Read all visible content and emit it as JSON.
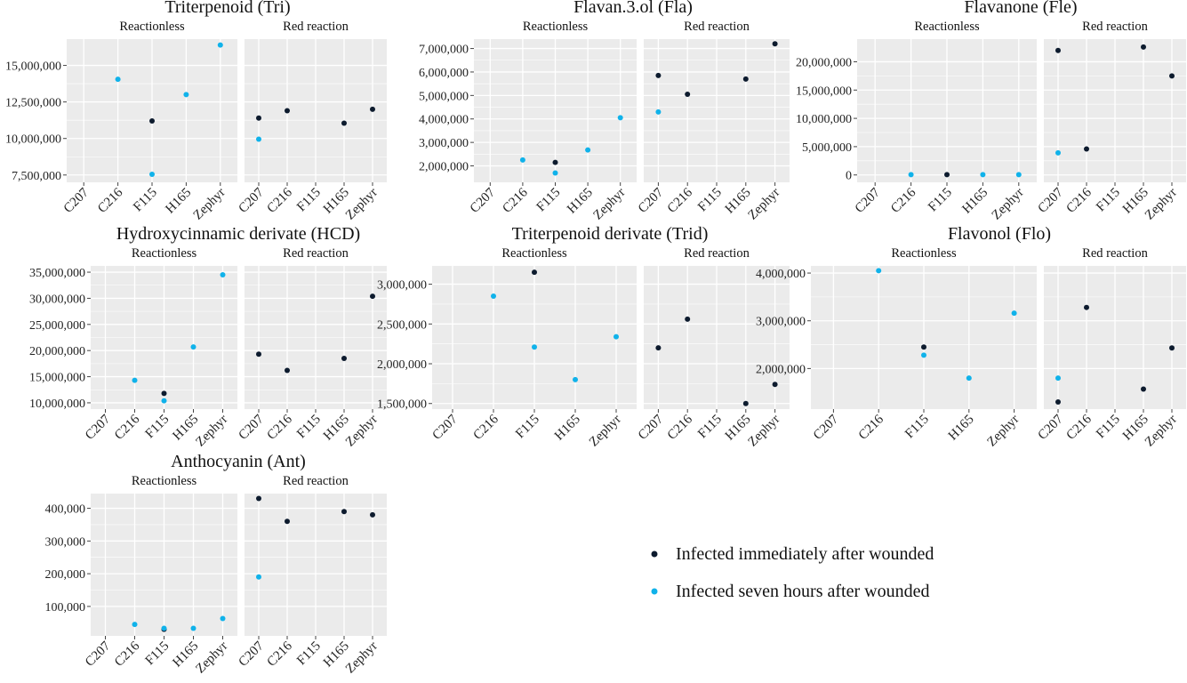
{
  "colors": {
    "immediate": "#0d1b2e",
    "seven_hours": "#10b2ea",
    "panel_bg": "#ebebeb",
    "grid": "#ffffff"
  },
  "legend": {
    "entries": [
      {
        "label": "Infected immediately after wounded",
        "color_key": "immediate"
      },
      {
        "label": "Infected seven hours after wounded",
        "color_key": "seven_hours"
      }
    ]
  },
  "chart_data": [
    {
      "type": "scatter",
      "title": "Triterpenoid (Tri)",
      "facets": [
        "Reactionless",
        "Red reaction"
      ],
      "categories": [
        "C207",
        "C216",
        "F115",
        "H165",
        "Zephyr"
      ],
      "ylim": [
        7000000,
        16800000
      ],
      "yticks": [
        7500000,
        10000000,
        12500000,
        15000000
      ],
      "ytick_labels": [
        "7,500,000",
        "10,000,000",
        "12,500,000",
        "15,000,000"
      ],
      "series": [
        {
          "color_key": "immediate",
          "facets": [
            [
              null,
              null,
              11200000,
              null,
              null
            ],
            [
              11400000,
              11900000,
              null,
              11050000,
              12000000
            ]
          ]
        },
        {
          "color_key": "seven_hours",
          "facets": [
            [
              null,
              14050000,
              7550000,
              13000000,
              16400000
            ],
            [
              null,
              null,
              null,
              null,
              null
            ]
          ]
        },
        {
          "color_key": "seven_hours",
          "facets": [
            [
              null,
              null,
              null,
              null,
              null
            ],
            [
              9950000,
              null,
              null,
              null,
              null
            ]
          ]
        }
      ]
    },
    {
      "type": "scatter",
      "title": "Flavan.3.ol (Fla)",
      "facets": [
        "Reactionless",
        "Red reaction"
      ],
      "categories": [
        "C207",
        "C216",
        "F115",
        "H165",
        "Zephyr"
      ],
      "ylim": [
        1300000,
        7400000
      ],
      "yticks": [
        2000000,
        3000000,
        4000000,
        5000000,
        6000000,
        7000000
      ],
      "ytick_labels": [
        "2,000,000",
        "3,000,000",
        "4,000,000",
        "5,000,000",
        "6,000,000",
        "7,000,000"
      ],
      "series": [
        {
          "color_key": "immediate",
          "facets": [
            [
              null,
              null,
              2150000,
              null,
              null
            ],
            [
              5850000,
              5050000,
              null,
              5700000,
              7200000
            ]
          ]
        },
        {
          "color_key": "seven_hours",
          "facets": [
            [
              null,
              2250000,
              1700000,
              2680000,
              4050000
            ],
            [
              4300000,
              null,
              null,
              null,
              null
            ]
          ]
        }
      ]
    },
    {
      "type": "scatter",
      "title": "Flavanone (Fle)",
      "facets": [
        "Reactionless",
        "Red reaction"
      ],
      "categories": [
        "C207",
        "C216",
        "F115",
        "H165",
        "Zephyr"
      ],
      "ylim": [
        -1300000,
        24000000
      ],
      "yticks": [
        0,
        5000000,
        10000000,
        15000000,
        20000000
      ],
      "ytick_labels": [
        "0",
        "5,000,000",
        "10,000,000",
        "15,000,000",
        "20,000,000"
      ],
      "series": [
        {
          "color_key": "immediate",
          "facets": [
            [
              null,
              null,
              50000,
              null,
              null
            ],
            [
              22000000,
              4600000,
              null,
              22600000,
              17500000
            ]
          ]
        },
        {
          "color_key": "seven_hours",
          "facets": [
            [
              null,
              50000,
              null,
              50000,
              50000
            ],
            [
              3900000,
              null,
              null,
              null,
              null
            ]
          ]
        }
      ]
    },
    {
      "type": "scatter",
      "title": "Hydroxycinnamic  derivate (HCD)",
      "facets": [
        "Reactionless",
        "Red reaction"
      ],
      "categories": [
        "C207",
        "C216",
        "F115",
        "H165",
        "Zephyr"
      ],
      "ylim": [
        8800000,
        36200000
      ],
      "yticks": [
        10000000,
        15000000,
        20000000,
        25000000,
        30000000,
        35000000
      ],
      "ytick_labels": [
        "10,000,000",
        "15,000,000",
        "20,000,000",
        "25,000,000",
        "30,000,000",
        "35,000,000"
      ],
      "series": [
        {
          "color_key": "immediate",
          "facets": [
            [
              null,
              null,
              11800000,
              null,
              null
            ],
            [
              19300000,
              16200000,
              null,
              18500000,
              30400000
            ]
          ]
        },
        {
          "color_key": "seven_hours",
          "facets": [
            [
              null,
              14300000,
              10400000,
              20700000,
              34500000
            ],
            [
              null,
              null,
              null,
              null,
              null
            ]
          ]
        }
      ]
    },
    {
      "type": "scatter",
      "title": "Triterpenoid  derivate (Trid)",
      "facets": [
        "Reactionless",
        "Red reaction"
      ],
      "categories": [
        "C207",
        "C216",
        "F115",
        "H165",
        "Zephyr"
      ],
      "ylim": [
        1430000,
        3230000
      ],
      "yticks": [
        1500000,
        2000000,
        2500000,
        3000000
      ],
      "ytick_labels": [
        "1,500,000",
        "2,000,000",
        "2,500,000",
        "3,000,000"
      ],
      "series": [
        {
          "color_key": "immediate",
          "facets": [
            [
              null,
              null,
              3150000,
              null,
              null
            ],
            [
              2200000,
              2560000,
              null,
              1500000,
              1740000
            ]
          ]
        },
        {
          "color_key": "seven_hours",
          "facets": [
            [
              null,
              2850000,
              2210000,
              1800000,
              2340000
            ],
            [
              null,
              null,
              null,
              null,
              null
            ]
          ]
        }
      ]
    },
    {
      "type": "scatter",
      "title": "Flavonol (Flo)",
      "facets": [
        "Reactionless",
        "Red reaction"
      ],
      "categories": [
        "C207",
        "C216",
        "F115",
        "H165",
        "Zephyr"
      ],
      "ylim": [
        1150000,
        4150000
      ],
      "yticks": [
        2000000,
        3000000,
        4000000
      ],
      "ytick_labels": [
        "2,000,000",
        "3,000,000",
        "4,000,000"
      ],
      "series": [
        {
          "color_key": "immediate",
          "facets": [
            [
              null,
              null,
              2450000,
              null,
              null
            ],
            [
              1300000,
              3280000,
              null,
              1570000,
              2430000
            ]
          ]
        },
        {
          "color_key": "seven_hours",
          "facets": [
            [
              null,
              4050000,
              2280000,
              1800000,
              3160000
            ],
            [
              1800000,
              null,
              null,
              null,
              null
            ]
          ]
        }
      ]
    },
    {
      "type": "scatter",
      "title": "Anthocyanin  (Ant)",
      "facets": [
        "Reactionless",
        "Red reaction"
      ],
      "categories": [
        "C207",
        "C216",
        "F115",
        "H165",
        "Zephyr"
      ],
      "ylim": [
        10000,
        445000
      ],
      "yticks": [
        100000,
        200000,
        300000,
        400000
      ],
      "ytick_labels": [
        "100,000",
        "200,000",
        "300,000",
        "400,000"
      ],
      "series": [
        {
          "color_key": "immediate",
          "facets": [
            [
              null,
              null,
              30000,
              null,
              null
            ],
            [
              430000,
              360000,
              null,
              390000,
              380000
            ]
          ]
        },
        {
          "color_key": "seven_hours",
          "facets": [
            [
              null,
              45000,
              33000,
              33000,
              63000
            ],
            [
              190000,
              null,
              null,
              null,
              null
            ]
          ]
        }
      ]
    }
  ]
}
